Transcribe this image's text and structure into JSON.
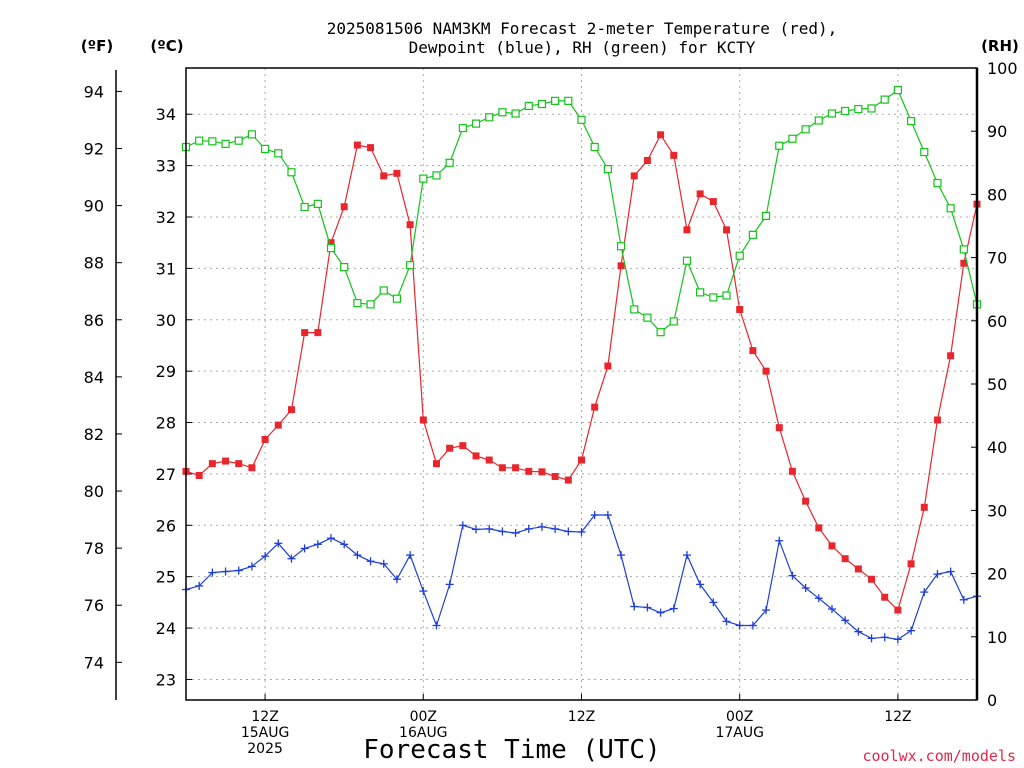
{
  "title_line1": "2025081506 NAM3KM Forecast 2-meter Temperature (red),",
  "title_line2": "Dewpoint (blue), RH (green) for KCTY",
  "units": {
    "f": "(ºF)",
    "c": "(ºC)",
    "rh": "(RH)"
  },
  "xaxis_title": "Forecast Time (UTC)",
  "credit": "coolwx.com/models",
  "colors": {
    "temperature": "#e8262e",
    "dewpoint": "#1e3fd8",
    "rh": "#13c41a",
    "grid": "#aaaaaa"
  },
  "chart_data": {
    "type": "line",
    "grid": true,
    "x_unit": "forecast hour from 2025-08-15 06Z",
    "x_range": [
      0,
      60
    ],
    "xticks": [
      {
        "x": 6,
        "lines": [
          "12Z",
          "15AUG",
          "2025"
        ]
      },
      {
        "x": 18,
        "lines": [
          "00Z",
          "16AUG"
        ]
      },
      {
        "x": 30,
        "lines": [
          "12Z"
        ]
      },
      {
        "x": 42,
        "lines": [
          "00Z",
          "17AUG"
        ]
      },
      {
        "x": 54,
        "lines": [
          "12Z"
        ]
      }
    ],
    "yaxis_c": {
      "range": [
        22.6,
        34.9
      ],
      "ticks": [
        23,
        24,
        25,
        26,
        27,
        28,
        29,
        30,
        31,
        32,
        33,
        34
      ]
    },
    "yaxis_f": {
      "ticks": [
        74,
        76,
        78,
        80,
        82,
        84,
        86,
        88,
        90,
        92,
        94
      ]
    },
    "yaxis_rh": {
      "range": [
        0,
        100
      ],
      "ticks": [
        0,
        10,
        20,
        30,
        40,
        50,
        60,
        70,
        80,
        90,
        100
      ]
    },
    "x": [
      0,
      1,
      2,
      3,
      4,
      5,
      6,
      7,
      8,
      9,
      10,
      11,
      12,
      13,
      14,
      15,
      16,
      17,
      18,
      19,
      20,
      21,
      22,
      23,
      24,
      25,
      26,
      27,
      28,
      29,
      30,
      31,
      32,
      33,
      34,
      35,
      36,
      37,
      38,
      39,
      40,
      41,
      42,
      43,
      44,
      45,
      46,
      47,
      48,
      49,
      50,
      51,
      52,
      53,
      54,
      55,
      56,
      57,
      58,
      59,
      60
    ],
    "series": [
      {
        "name": "Temperature",
        "axis": "c",
        "marker": "filled-square",
        "color_key": "temperature",
        "values": [
          27.05,
          26.97,
          27.2,
          27.25,
          27.2,
          27.12,
          27.67,
          27.95,
          28.25,
          29.75,
          29.75,
          31.5,
          32.2,
          33.4,
          33.35,
          32.8,
          32.85,
          31.85,
          28.05,
          27.2,
          27.5,
          27.55,
          27.35,
          27.27,
          27.12,
          27.12,
          27.05,
          27.04,
          26.95,
          26.88,
          27.27,
          28.3,
          29.1,
          31.05,
          32.8,
          33.1,
          33.6,
          33.2,
          31.75,
          32.45,
          32.3,
          31.75,
          30.2,
          29.4,
          29,
          27.9,
          27.05,
          26.47,
          25.95,
          25.6,
          25.35,
          25.15,
          24.95,
          24.6,
          24.35,
          25.25,
          26.35,
          28.05,
          29.3,
          31.1,
          32.25
        ]
      },
      {
        "name": "Dewpoint",
        "axis": "c",
        "marker": "plus",
        "color_key": "dewpoint",
        "values": [
          24.75,
          24.82,
          25.08,
          25.1,
          25.12,
          25.2,
          25.4,
          25.65,
          25.35,
          25.55,
          25.63,
          25.75,
          25.63,
          25.42,
          25.3,
          25.25,
          24.95,
          25.42,
          24.72,
          24.05,
          24.85,
          26,
          25.92,
          25.93,
          25.88,
          25.85,
          25.93,
          25.97,
          25.93,
          25.88,
          25.87,
          26.2,
          26.2,
          25.42,
          24.42,
          24.4,
          24.3,
          24.38,
          25.42,
          24.85,
          24.5,
          24.13,
          24.05,
          24.05,
          24.35,
          25.7,
          25.02,
          24.78,
          24.58,
          24.37,
          24.15,
          23.93,
          23.8,
          23.82,
          23.78,
          23.95,
          24.7,
          25.05,
          25.1,
          24.55,
          24.62
        ]
      },
      {
        "name": "RH",
        "axis": "rh",
        "marker": "open-square",
        "color_key": "rh",
        "values": [
          87.5,
          88.5,
          88.4,
          88,
          88.5,
          89.5,
          87.2,
          86.5,
          83.5,
          78,
          78.5,
          71.5,
          68.5,
          62.8,
          62.6,
          64.8,
          63.5,
          68.8,
          82.5,
          83,
          85,
          90.5,
          91.2,
          92.2,
          93,
          92.8,
          94,
          94.3,
          94.8,
          94.8,
          91.8,
          87.5,
          84,
          71.8,
          61.8,
          60.5,
          58.2,
          59.9,
          69.5,
          64.5,
          63.7,
          64,
          70.3,
          73.6,
          76.6,
          87.7,
          88.8,
          90.3,
          91.7,
          92.8,
          93.2,
          93.5,
          93.6,
          95,
          96.5,
          91.6,
          86.7,
          81.8,
          77.8,
          71.3,
          62.6
        ]
      }
    ]
  }
}
